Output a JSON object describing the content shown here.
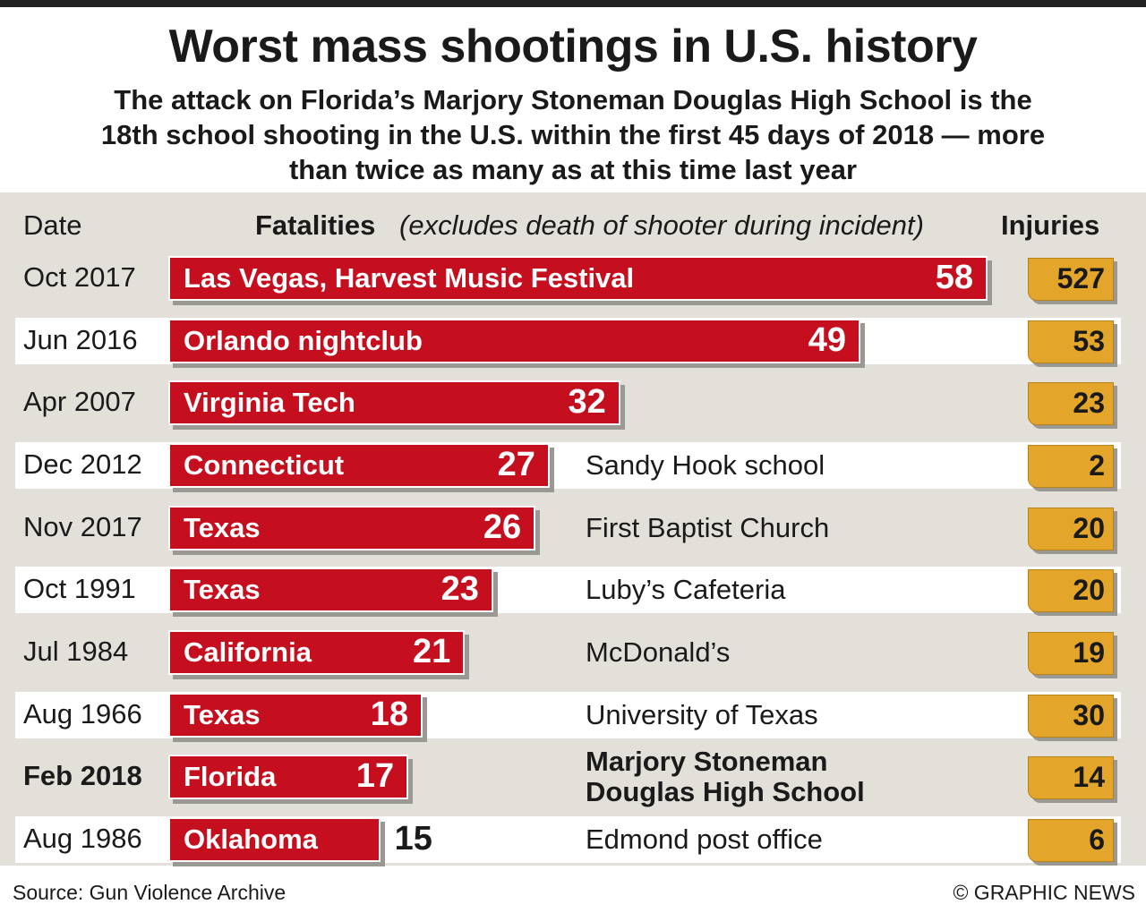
{
  "chart_data": {
    "type": "bar",
    "title": "Worst mass shootings in U.S. history",
    "subtitle": [
      "The attack on Florida’s Marjory Stoneman Douglas High School is the",
      "18th school shooting in the U.S. within the first 45 days of 2018 — more",
      "than twice as many as at this time last year"
    ],
    "date_label": "Date",
    "value_label": "Fatalities",
    "value_note": "(excludes death of shooter during incident)",
    "injuries_label": "Injuries",
    "categories": [
      "Oct 2017",
      "Jun 2016",
      "Apr 2007",
      "Dec 2012",
      "Nov 2017",
      "Oct 1991",
      "Jul 1984",
      "Aug 1966",
      "Feb 2018",
      "Aug 1986"
    ],
    "bar_labels": [
      "Las Vegas, Harvest Music Festival",
      "Orlando nightclub",
      "Virginia Tech",
      "Connecticut",
      "Texas",
      "Texas",
      "California",
      "Texas",
      "Florida",
      "Oklahoma"
    ],
    "values": [
      58,
      49,
      32,
      27,
      26,
      23,
      21,
      18,
      17,
      15
    ],
    "descriptions": [
      null,
      null,
      null,
      "Sandy Hook school",
      "First Baptist Church",
      "Luby’s Cafeteria",
      "McDonald’s",
      "University of Texas",
      "Marjory Stoneman Douglas High School",
      "Edmond post office"
    ],
    "injuries": [
      527,
      53,
      23,
      2,
      20,
      20,
      19,
      30,
      14,
      6
    ],
    "color": "#c50f1f",
    "injury_color": "#e3a52a",
    "highlight_row": 8,
    "source": "Source: Gun Violence Archive",
    "credit": "© GRAPHIC NEWS"
  }
}
